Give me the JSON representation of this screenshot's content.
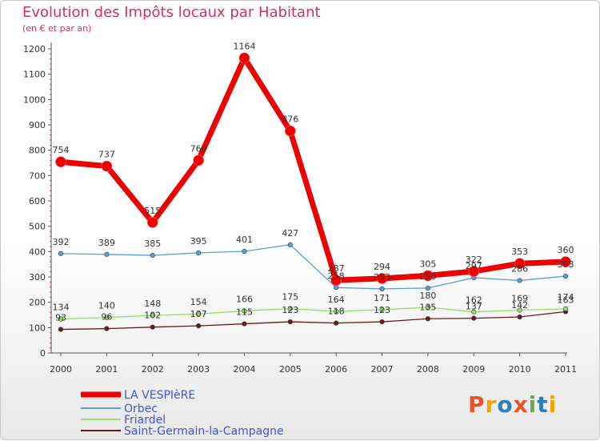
{
  "header": {
    "title": "Evolution des Impôts locaux par Habitant",
    "subtitle": "(en € et par an)"
  },
  "logo": {
    "text": "Proxiti",
    "letter_colors": [
      "#e4572e",
      "#f2a400",
      "#2c7fb8",
      "#e4572e",
      "#6aa84f",
      "#2c7fb8",
      "#f2a400"
    ]
  },
  "chart_data": {
    "type": "line",
    "title": "Evolution des Impôts locaux par Habitant",
    "subtitle": "(en € et par an)",
    "xlabel": "",
    "ylabel": "",
    "categories": [
      "2000",
      "2001",
      "2002",
      "2003",
      "2004",
      "2005",
      "2006",
      "2007",
      "2008",
      "2009",
      "2010",
      "2011"
    ],
    "ylim": [
      0,
      1200
    ],
    "yticks": [
      0,
      100,
      200,
      300,
      400,
      500,
      600,
      700,
      800,
      900,
      1000,
      1100,
      1200
    ],
    "grid": false,
    "legend_position": "bottom-left",
    "series": [
      {
        "name": "LA VESPIèRE",
        "color": "#ee0000",
        "values": [
          754,
          737,
          515,
          760,
          1164,
          876,
          287,
          294,
          305,
          322,
          353,
          360
        ],
        "labels": [
          "754",
          "737",
          "515",
          "760",
          "1164",
          "876",
          "287",
          "294",
          "305",
          "322",
          "353",
          "360"
        ]
      },
      {
        "name": "Orbec",
        "color": "#5a9fd4",
        "values": [
          392,
          389,
          385,
          395,
          401,
          427,
          258,
          253,
          256,
          297,
          286,
          303
        ],
        "labels": [
          "392",
          "389",
          "385",
          "395",
          "401",
          "427",
          "258",
          "253",
          "256",
          "297",
          "286",
          "303"
        ]
      },
      {
        "name": "Friardel",
        "color": "#99dd66",
        "values": [
          134,
          140,
          148,
          154,
          166,
          175,
          164,
          171,
          180,
          162,
          169,
          174
        ],
        "labels": [
          "134",
          "140",
          "148",
          "154",
          "166",
          "175",
          "164",
          "171",
          "180",
          "162",
          "169",
          "174"
        ]
      },
      {
        "name": "Saint-Germain-la-Campagne",
        "color": "#6b1a1a",
        "values": [
          93,
          96,
          102,
          107,
          115,
          123,
          118,
          123,
          135,
          137,
          142,
          163
        ],
        "labels": [
          "93",
          "96",
          "102",
          "107",
          "115",
          "123",
          "118",
          "123",
          "135",
          "137",
          "142",
          "163"
        ]
      }
    ]
  }
}
